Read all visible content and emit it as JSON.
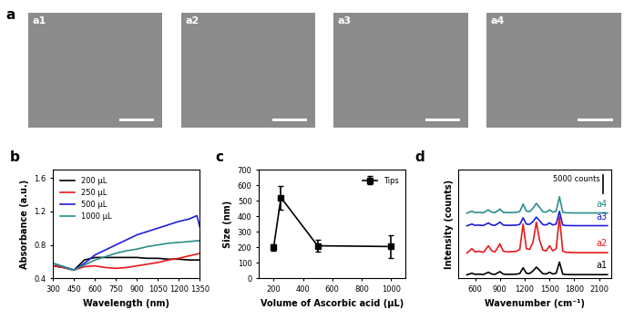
{
  "panel_label": "a",
  "images": [
    {
      "label": "a1"
    },
    {
      "label": "a2"
    },
    {
      "label": "a3"
    },
    {
      "label": "a4"
    }
  ],
  "chart_data": [
    {
      "panel": "b",
      "type": "line",
      "x_label": "Wavelength (nm)",
      "y_label": "Absorbance (a.u.)",
      "xlim": [
        300,
        1350
      ],
      "xticks": [
        300,
        450,
        600,
        750,
        900,
        1050,
        1200,
        1350
      ],
      "ylim": [
        0.4,
        1.7
      ],
      "yticks": [
        0.4,
        0.8,
        1.2,
        1.6
      ],
      "legend": "upper left",
      "x": [
        300,
        375,
        450,
        525,
        600,
        675,
        750,
        825,
        900,
        975,
        1050,
        1125,
        1200,
        1275,
        1330,
        1350
      ],
      "series": [
        {
          "name": "200 μL",
          "color": "#000000",
          "values": [
            0.55,
            0.53,
            0.5,
            0.62,
            0.65,
            0.65,
            0.65,
            0.65,
            0.65,
            0.64,
            0.64,
            0.63,
            0.63,
            0.62,
            0.62,
            0.62
          ]
        },
        {
          "name": "250 μL",
          "color": "#e8191c",
          "values": [
            0.55,
            0.53,
            0.5,
            0.54,
            0.55,
            0.53,
            0.52,
            0.53,
            0.55,
            0.57,
            0.59,
            0.62,
            0.64,
            0.67,
            0.69,
            0.7
          ]
        },
        {
          "name": "500 μL",
          "color": "#1f1fd6",
          "values": [
            0.58,
            0.54,
            0.5,
            0.58,
            0.68,
            0.74,
            0.8,
            0.86,
            0.92,
            0.96,
            1.0,
            1.04,
            1.08,
            1.11,
            1.15,
            1.02
          ]
        },
        {
          "name": "1000 μL",
          "color": "#2a8f8a",
          "values": [
            0.58,
            0.54,
            0.5,
            0.56,
            0.62,
            0.66,
            0.7,
            0.73,
            0.75,
            0.78,
            0.8,
            0.82,
            0.83,
            0.84,
            0.85,
            0.85
          ]
        }
      ]
    },
    {
      "panel": "c",
      "type": "line",
      "x_label": "Volume of Ascorbic acid (μL)",
      "y_label": "Size (nm)",
      "xlim": [
        100,
        1100
      ],
      "xticks": [
        200,
        400,
        600,
        800,
        1000
      ],
      "ylim": [
        0,
        700
      ],
      "yticks": [
        0,
        100,
        200,
        300,
        400,
        500,
        600,
        700
      ],
      "legend": "upper right",
      "x": [
        200,
        250,
        500,
        1000
      ],
      "series": [
        {
          "name": "Tips",
          "color": "#000000",
          "marker": "square",
          "values": [
            200,
            520,
            210,
            205
          ],
          "errors": [
            20,
            75,
            40,
            75
          ]
        }
      ]
    },
    {
      "panel": "d",
      "type": "line",
      "x_label": "Wavenumber (cm⁻¹)",
      "y_label": "Intensity (counts)",
      "xlim": [
        400,
        2250
      ],
      "xticks": [
        600,
        900,
        1200,
        1500,
        1800,
        2100
      ],
      "ylim": [
        0,
        30000
      ],
      "tick_labels": "x",
      "scale_bar": {
        "label": "5000 counts",
        "value": 5000
      },
      "x": [
        500,
        560,
        600,
        640,
        700,
        760,
        800,
        840,
        900,
        940,
        1000,
        1060,
        1100,
        1140,
        1180,
        1220,
        1260,
        1300,
        1340,
        1380,
        1420,
        1460,
        1500,
        1540,
        1580,
        1620,
        1660,
        1700,
        1800,
        1900,
        2000,
        2100,
        2200
      ],
      "series": [
        {
          "name": "a1",
          "color": "#000000",
          "values": [
            1000,
            1420,
            1105,
            1175,
            1070,
            1700,
            1210,
            1105,
            1875,
            1175,
            1105,
            1140,
            1175,
            1350,
            2925,
            1420,
            1350,
            2050,
            3100,
            2225,
            1280,
            1210,
            1700,
            1210,
            1420,
            4500,
            1175,
            1070,
            1035,
            1035,
            1035,
            1035,
            1035
          ]
        },
        {
          "name": "a2",
          "color": "#e8191c",
          "values": [
            7000,
            8200,
            7300,
            7500,
            7200,
            9000,
            7600,
            7300,
            9500,
            7500,
            7300,
            7400,
            7500,
            8000,
            15000,
            8200,
            8000,
            10000,
            15500,
            10500,
            7800,
            7600,
            9000,
            7600,
            8200,
            17000,
            7500,
            7200,
            7100,
            7100,
            7100,
            7100,
            7100
          ]
        },
        {
          "name": "a3",
          "color": "#1f1fd6",
          "values": [
            14500,
            14980,
            14620,
            14700,
            14580,
            15300,
            14740,
            14620,
            15500,
            14700,
            14620,
            14660,
            14700,
            14900,
            16700,
            14980,
            14900,
            15700,
            16900,
            15900,
            14820,
            14740,
            15300,
            14740,
            14980,
            18500,
            14700,
            14580,
            14540,
            14540,
            14540,
            14540,
            14540
          ]
        },
        {
          "name": "a4",
          "color": "#2a8f8a",
          "values": [
            18000,
            18540,
            18135,
            18225,
            18090,
            18900,
            18270,
            18135,
            19125,
            18225,
            18135,
            18180,
            18225,
            18450,
            20475,
            18540,
            18450,
            19350,
            20700,
            19575,
            18360,
            18270,
            18900,
            18270,
            18540,
            22500,
            18225,
            18090,
            18045,
            18045,
            18045,
            18045,
            18045
          ]
        }
      ]
    }
  ]
}
